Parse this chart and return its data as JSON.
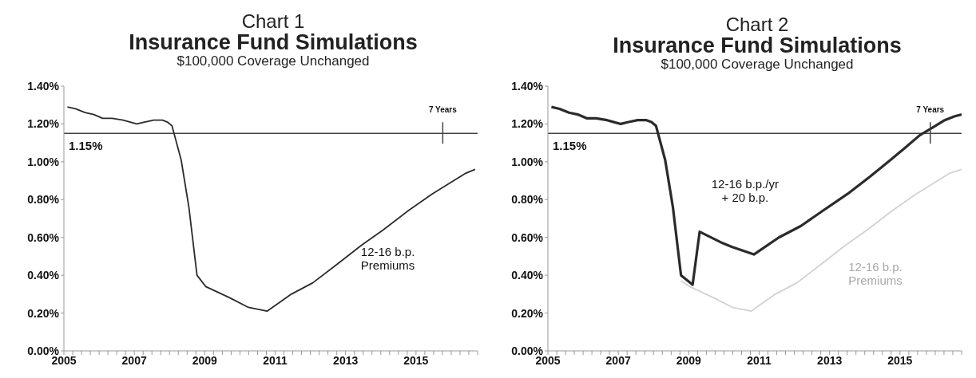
{
  "chart_data": [
    {
      "type": "line",
      "title": "Chart 1\nInsurance Fund Simulations",
      "subtitle": "$100,000 Coverage Unchanged",
      "series": [
        {
          "name": "12-16 b.p.\nPremiums",
          "color": "#2b2b2b",
          "x": [
            2005.1,
            2005.33,
            2005.6,
            2005.85,
            2006.1,
            2006.37,
            2006.68,
            2007.07,
            2007.29,
            2007.55,
            2007.8,
            2007.94,
            2008.07,
            2008.33,
            2008.55,
            2008.78,
            2009.03,
            2009.72,
            2010.24,
            2010.77,
            2011.46,
            2012.07,
            2012.77,
            2013.46,
            2014.07,
            2014.77,
            2015.46,
            2015.98,
            2016.42,
            2016.68
          ],
          "values": [
            1.29,
            1.28,
            1.26,
            1.25,
            1.23,
            1.23,
            1.22,
            1.2,
            1.21,
            1.22,
            1.22,
            1.21,
            1.19,
            1.01,
            0.76,
            0.4,
            0.34,
            0.28,
            0.23,
            0.21,
            0.3,
            0.36,
            0.46,
            0.56,
            0.64,
            0.74,
            0.83,
            0.89,
            0.94,
            0.96
          ]
        }
      ],
      "xlim": [
        2005,
        2016.75
      ],
      "xticks": [
        2005,
        {
          "value": 2005.25,
          "label": null
        },
        {
          "value": 2005.5,
          "label": null
        },
        {
          "value": 2005.75,
          "label": null
        },
        {
          "value": 2006,
          "label": null
        },
        {
          "value": 2006.25,
          "label": null
        },
        {
          "value": 2006.5,
          "label": null
        },
        {
          "value": 2006.75,
          "label": null
        },
        2007,
        {
          "value": 2007.25,
          "label": null
        },
        {
          "value": 2007.5,
          "label": null
        },
        {
          "value": 2007.75,
          "label": null
        },
        {
          "value": 2008,
          "label": null
        },
        {
          "value": 2008.25,
          "label": null
        },
        {
          "value": 2008.5,
          "label": null
        },
        {
          "value": 2008.75,
          "label": null
        },
        2009,
        {
          "value": 2009.25,
          "label": null
        },
        {
          "value": 2009.5,
          "label": null
        },
        {
          "value": 2009.75,
          "label": null
        },
        {
          "value": 2010,
          "label": null
        },
        {
          "value": 2010.25,
          "label": null
        },
        {
          "value": 2010.5,
          "label": null
        },
        {
          "value": 2010.75,
          "label": null
        },
        2011,
        {
          "value": 2011.25,
          "label": null
        },
        {
          "value": 2011.5,
          "label": null
        },
        {
          "value": 2011.75,
          "label": null
        },
        {
          "value": 2012,
          "label": null
        },
        {
          "value": 2012.25,
          "label": null
        },
        {
          "value": 2012.5,
          "label": null
        },
        {
          "value": 2012.75,
          "label": null
        },
        2013,
        {
          "value": 2013.25,
          "label": null
        },
        {
          "value": 2013.5,
          "label": null
        },
        {
          "value": 2013.75,
          "label": null
        },
        {
          "value": 2014,
          "label": null
        },
        {
          "value": 2014.25,
          "label": null
        },
        {
          "value": 2014.5,
          "label": null
        },
        {
          "value": 2014.75,
          "label": null
        },
        2015,
        {
          "value": 2015.25,
          "label": null
        },
        {
          "value": 2015.5,
          "label": null
        },
        {
          "value": 2015.75,
          "label": null
        },
        {
          "value": 2016,
          "label": null
        },
        {
          "value": 2016.25,
          "label": null
        },
        {
          "value": 2016.5,
          "label": null
        },
        {
          "value": 2016.75,
          "label": null
        }
      ],
      "ylim": [
        0,
        1.4
      ],
      "yticks": [
        {
          "value": 0,
          "label": "0.00%"
        },
        {
          "value": 0.2,
          "label": "0.20%"
        },
        {
          "value": 0.4,
          "label": "0.40%"
        },
        {
          "value": 0.6,
          "label": "0.60%"
        },
        {
          "value": 0.8,
          "label": "0.80%"
        },
        {
          "value": 1.0,
          "label": "1.00%"
        },
        {
          "value": 1.2,
          "label": "1.20%"
        },
        {
          "value": 1.4,
          "label": "1.40%"
        }
      ],
      "ref_lines": [
        {
          "axis": "y",
          "value": 1.15,
          "label": "1.15%",
          "color": "#444444"
        }
      ],
      "annotations": [
        {
          "text": "7 Years",
          "x": 2015.76,
          "y": 1.15
        }
      ],
      "grid": false,
      "legend": false,
      "marker": "none",
      "line_style": "solid"
    },
    {
      "type": "line",
      "title": "Chart 2\nInsurance Fund Simulations",
      "subtitle": "$100,000 Coverage Unchanged",
      "series": [
        {
          "name": "12-16 b.p.\nPremiums",
          "color": "#d2d2d2",
          "x": [
            2008.78,
            2009.03,
            2009.72,
            2010.24,
            2010.77,
            2011.46,
            2012.07,
            2012.77,
            2013.46,
            2014.07,
            2014.77,
            2015.46,
            2015.98,
            2016.42,
            2016.75
          ],
          "values": [
            0.37,
            0.34,
            0.28,
            0.23,
            0.21,
            0.3,
            0.36,
            0.46,
            0.56,
            0.64,
            0.74,
            0.83,
            0.89,
            0.94,
            0.96
          ]
        },
        {
          "name": "12-16 b.p./yr\n+ 20 b.p.",
          "color": "#2b2b2b",
          "x": [
            2005.1,
            2005.33,
            2005.6,
            2005.85,
            2006.1,
            2006.37,
            2006.68,
            2007.07,
            2007.29,
            2007.55,
            2007.8,
            2007.94,
            2008.07,
            2008.33,
            2008.55,
            2008.78,
            2009.11,
            2009.31,
            2009.96,
            2010.22,
            2010.85,
            2011.56,
            2012.18,
            2012.8,
            2013.51,
            2014.14,
            2014.67,
            2015.12,
            2015.56,
            2015.92,
            2016.27,
            2016.54,
            2016.75
          ],
          "values": [
            1.29,
            1.28,
            1.26,
            1.25,
            1.23,
            1.23,
            1.22,
            1.2,
            1.21,
            1.22,
            1.22,
            1.21,
            1.19,
            1.01,
            0.76,
            0.4,
            0.35,
            0.63,
            0.57,
            0.55,
            0.51,
            0.6,
            0.66,
            0.74,
            0.83,
            0.92,
            1.0,
            1.07,
            1.14,
            1.18,
            1.22,
            1.24,
            1.25
          ]
        }
      ],
      "xlim": [
        2005,
        2016.75
      ],
      "xticks": [
        2005,
        {
          "value": 2005.25,
          "label": null
        },
        {
          "value": 2005.5,
          "label": null
        },
        {
          "value": 2005.75,
          "label": null
        },
        {
          "value": 2006,
          "label": null
        },
        {
          "value": 2006.25,
          "label": null
        },
        {
          "value": 2006.5,
          "label": null
        },
        {
          "value": 2006.75,
          "label": null
        },
        2007,
        {
          "value": 2007.25,
          "label": null
        },
        {
          "value": 2007.5,
          "label": null
        },
        {
          "value": 2007.75,
          "label": null
        },
        {
          "value": 2008,
          "label": null
        },
        {
          "value": 2008.25,
          "label": null
        },
        {
          "value": 2008.5,
          "label": null
        },
        {
          "value": 2008.75,
          "label": null
        },
        2009,
        {
          "value": 2009.25,
          "label": null
        },
        {
          "value": 2009.5,
          "label": null
        },
        {
          "value": 2009.75,
          "label": null
        },
        {
          "value": 2010,
          "label": null
        },
        {
          "value": 2010.25,
          "label": null
        },
        {
          "value": 2010.5,
          "label": null
        },
        {
          "value": 2010.75,
          "label": null
        },
        2011,
        {
          "value": 2011.25,
          "label": null
        },
        {
          "value": 2011.5,
          "label": null
        },
        {
          "value": 2011.75,
          "label": null
        },
        {
          "value": 2012,
          "label": null
        },
        {
          "value": 2012.25,
          "label": null
        },
        {
          "value": 2012.5,
          "label": null
        },
        {
          "value": 2012.75,
          "label": null
        },
        2013,
        {
          "value": 2013.25,
          "label": null
        },
        {
          "value": 2013.5,
          "label": null
        },
        {
          "value": 2013.75,
          "label": null
        },
        {
          "value": 2014,
          "label": null
        },
        {
          "value": 2014.25,
          "label": null
        },
        {
          "value": 2014.5,
          "label": null
        },
        {
          "value": 2014.75,
          "label": null
        },
        2015,
        {
          "value": 2015.25,
          "label": null
        },
        {
          "value": 2015.5,
          "label": null
        },
        {
          "value": 2015.75,
          "label": null
        },
        {
          "value": 2016,
          "label": null
        },
        {
          "value": 2016.25,
          "label": null
        },
        {
          "value": 2016.5,
          "label": null
        },
        {
          "value": 2016.75,
          "label": null
        }
      ],
      "ylim": [
        0,
        1.4
      ],
      "yticks": [
        {
          "value": 0,
          "label": "0.00%"
        },
        {
          "value": 0.2,
          "label": "0.20%"
        },
        {
          "value": 0.4,
          "label": "0.40%"
        },
        {
          "value": 0.6,
          "label": "0.60%"
        },
        {
          "value": 0.8,
          "label": "0.80%"
        },
        {
          "value": 1.0,
          "label": "1.00%"
        },
        {
          "value": 1.2,
          "label": "1.20%"
        },
        {
          "value": 1.4,
          "label": "1.40%"
        }
      ],
      "ref_lines": [
        {
          "axis": "y",
          "value": 1.15,
          "label": "1.15%",
          "color": "#444444"
        }
      ],
      "annotations": [
        {
          "text": "7 Years",
          "x": 2015.86,
          "y": 1.15
        }
      ],
      "grid": false,
      "legend": false,
      "marker": "none",
      "line_style": "solid"
    }
  ]
}
